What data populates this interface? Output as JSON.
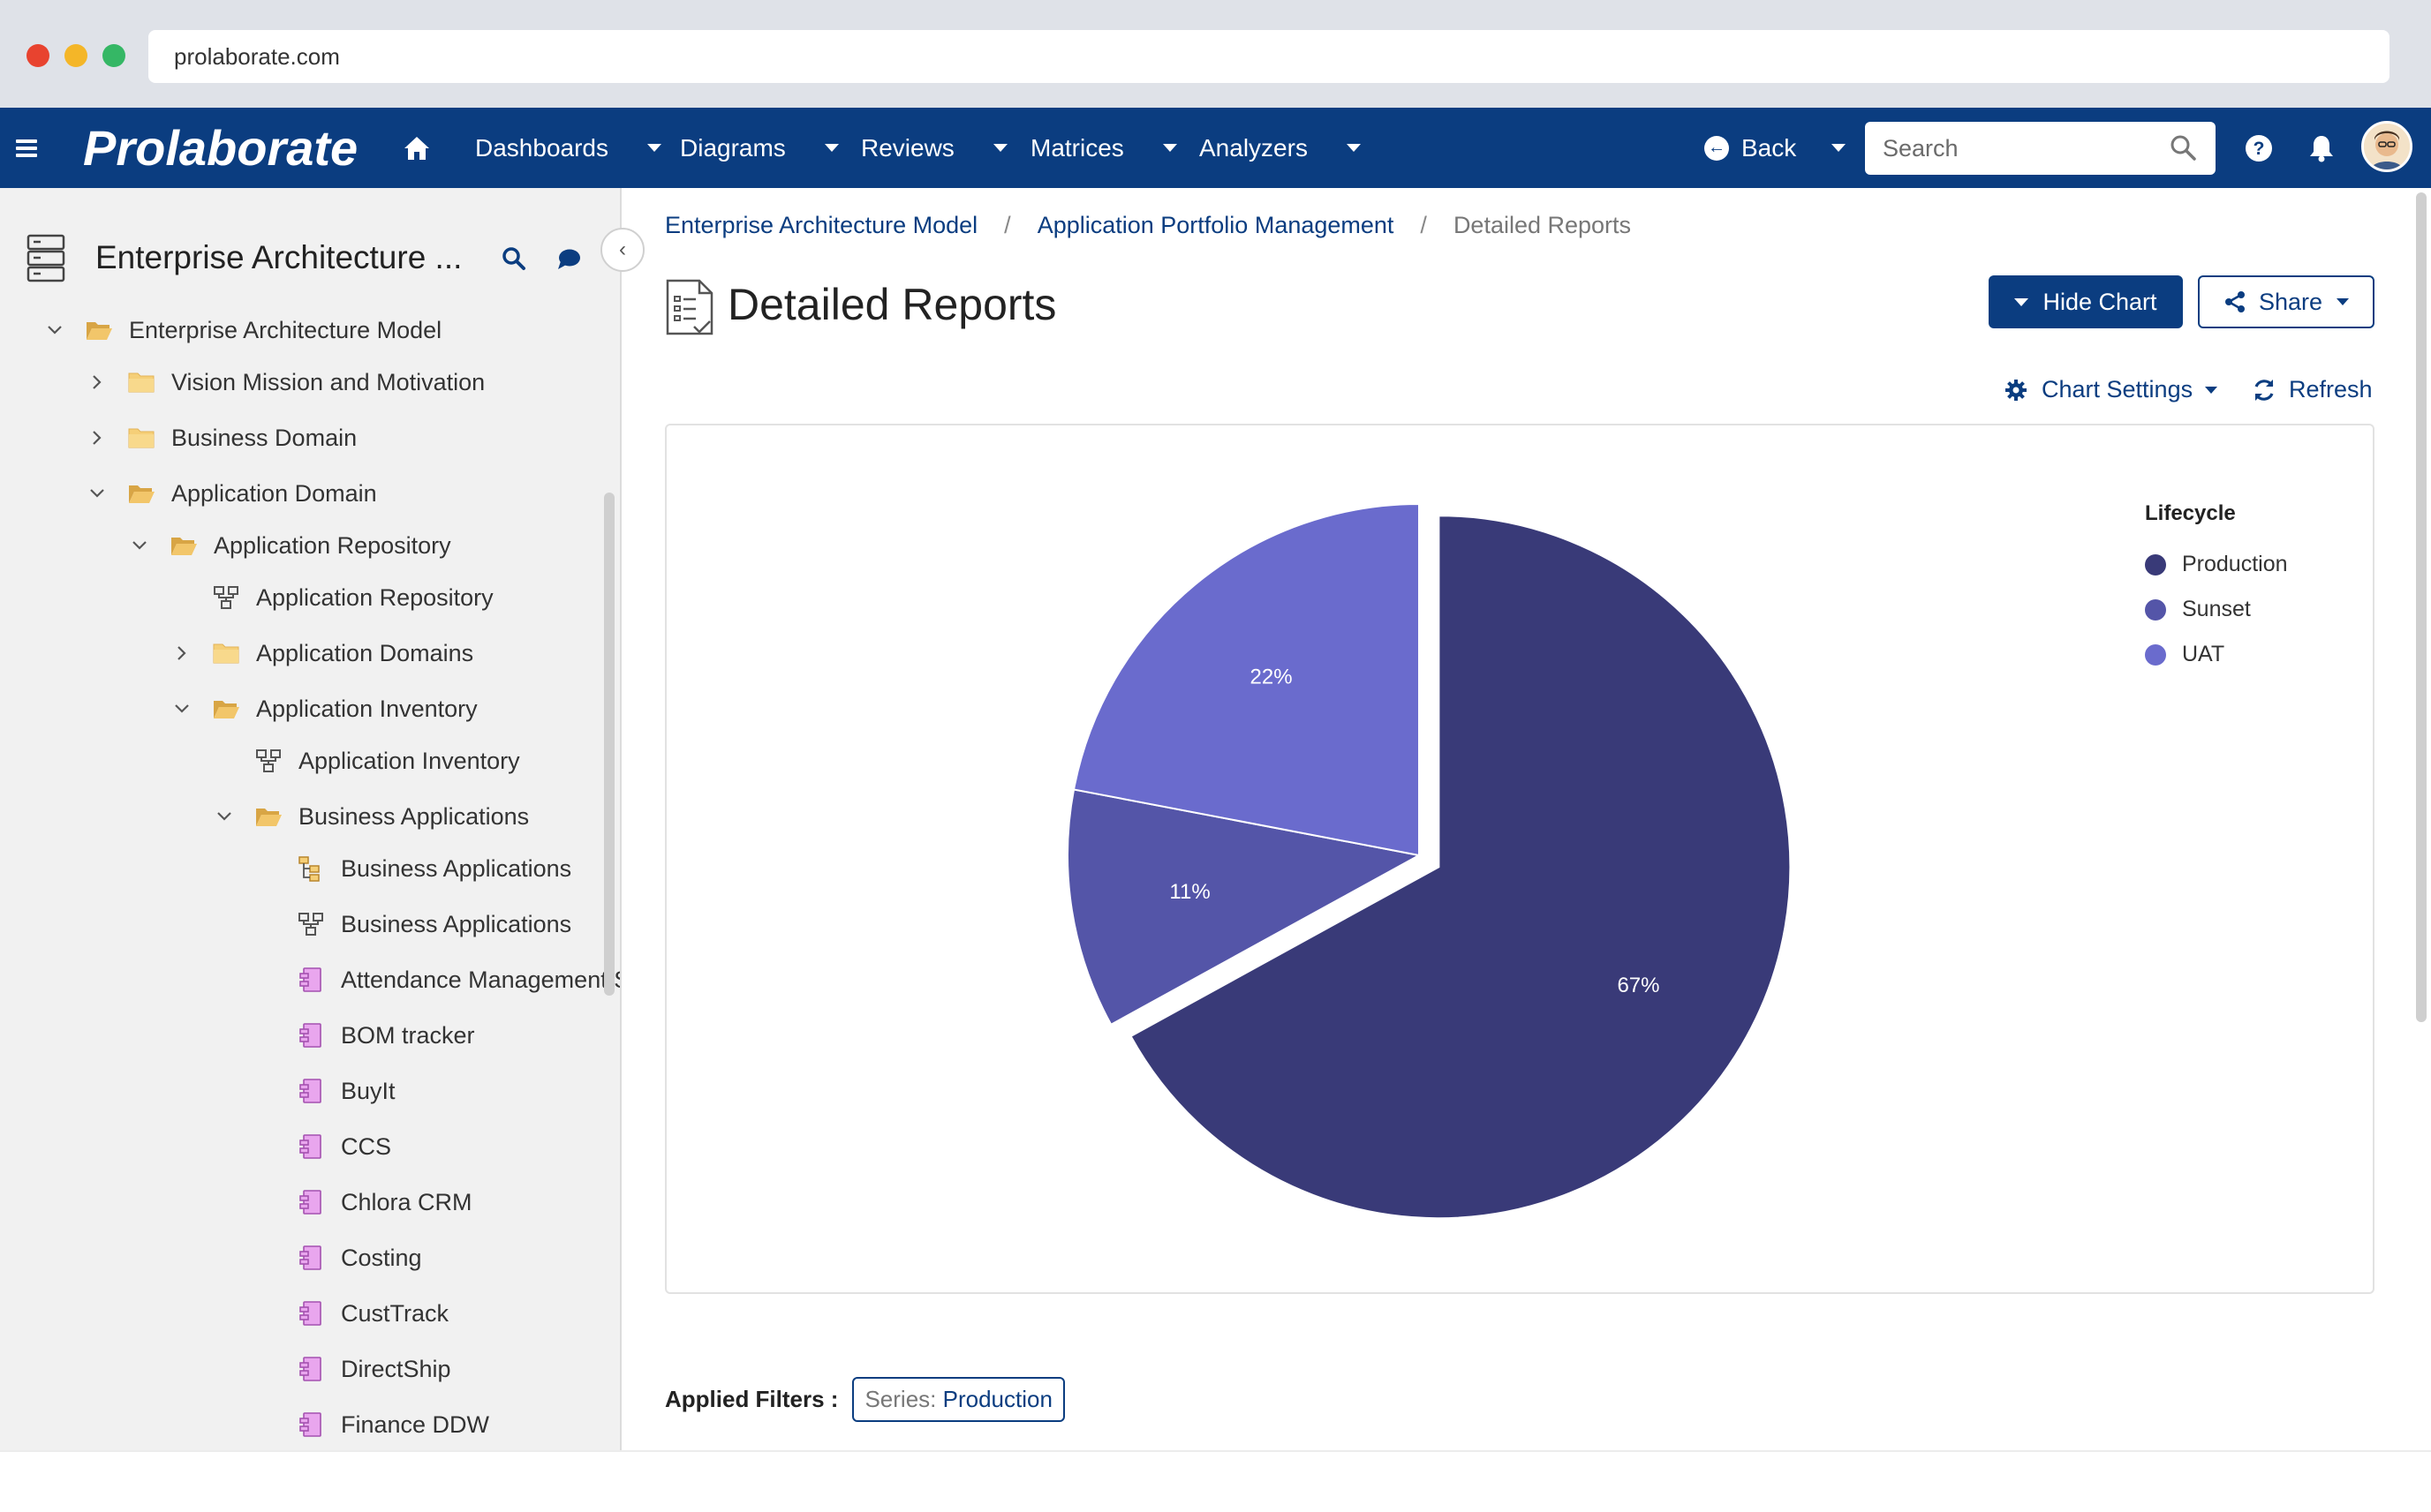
{
  "browser": {
    "url": "prolaborate.com"
  },
  "navbar": {
    "logo": "Prolaborate",
    "menus": [
      {
        "label": "Dashboards"
      },
      {
        "label": "Diagrams"
      },
      {
        "label": "Reviews"
      },
      {
        "label": "Matrices"
      },
      {
        "label": "Analyzers"
      }
    ],
    "back_label": "Back",
    "search_placeholder": "Search",
    "brand_color": "#0b3d80"
  },
  "sidebar": {
    "title": "Enterprise Architecture ...",
    "tree": [
      {
        "label": "Enterprise Architecture Model",
        "level": 0,
        "icon": "folder-open-icon",
        "expander": "expanded"
      },
      {
        "label": "Vision Mission and Motivation",
        "level": 1,
        "icon": "folder-icon",
        "expander": "collapsed"
      },
      {
        "label": "Business Domain",
        "level": 1,
        "icon": "folder-icon",
        "expander": "collapsed"
      },
      {
        "label": "Application Domain",
        "level": 1,
        "icon": "folder-open-icon",
        "expander": "expanded"
      },
      {
        "label": "Application Repository",
        "level": 2,
        "icon": "folder-open-icon",
        "expander": "expanded"
      },
      {
        "label": "Application Repository",
        "level": 3,
        "icon": "diagram-icon",
        "expander": "none"
      },
      {
        "label": "Application Domains",
        "level": 3,
        "icon": "folder-icon",
        "expander": "collapsed"
      },
      {
        "label": "Application Inventory",
        "level": 3,
        "icon": "folder-open-icon",
        "expander": "expanded"
      },
      {
        "label": "Application Inventory",
        "level": 4,
        "icon": "diagram-icon",
        "expander": "none"
      },
      {
        "label": "Business Applications",
        "level": 4,
        "icon": "folder-open-icon",
        "expander": "expanded"
      },
      {
        "label": "Business Applications",
        "level": 5,
        "icon": "hierarchy-diagram-icon",
        "expander": "none"
      },
      {
        "label": "Business Applications",
        "level": 5,
        "icon": "diagram-icon",
        "expander": "none"
      },
      {
        "label": "Attendance Management S",
        "level": 5,
        "icon": "component-icon",
        "expander": "none"
      },
      {
        "label": "BOM tracker",
        "level": 5,
        "icon": "component-icon",
        "expander": "none"
      },
      {
        "label": "BuyIt",
        "level": 5,
        "icon": "component-icon",
        "expander": "none"
      },
      {
        "label": "CCS",
        "level": 5,
        "icon": "component-icon",
        "expander": "none"
      },
      {
        "label": "Chlora CRM",
        "level": 5,
        "icon": "component-icon",
        "expander": "none"
      },
      {
        "label": "Costing",
        "level": 5,
        "icon": "component-icon",
        "expander": "none"
      },
      {
        "label": "CustTrack",
        "level": 5,
        "icon": "component-icon",
        "expander": "none"
      },
      {
        "label": "DirectShip",
        "level": 5,
        "icon": "component-icon",
        "expander": "none"
      },
      {
        "label": "Finance DDW",
        "level": 5,
        "icon": "component-icon",
        "expander": "none"
      }
    ]
  },
  "main": {
    "breadcrumb": [
      {
        "label": "Enterprise Architecture Model"
      },
      {
        "label": "Application Portfolio Management"
      },
      {
        "label": "Detailed Reports"
      }
    ],
    "breadcrumb_separator": "/",
    "title": "Detailed Reports",
    "hide_chart_label": "Hide Chart",
    "share_label": "Share",
    "chart_settings_label": "Chart Settings",
    "refresh_label": "Refresh",
    "filters_label": "Applied Filters :",
    "filter_key": "Series:",
    "filter_value": "Production"
  },
  "chart_data": {
    "type": "pie",
    "legend_title": "Lifecycle",
    "legend_position": "top-right",
    "slices": [
      {
        "name": "Production",
        "value": 67,
        "label": "67%",
        "color": "#393a78",
        "exploded": true
      },
      {
        "name": "Sunset",
        "value": 11,
        "label": "11%",
        "color": "#5455a8",
        "exploded": false
      },
      {
        "name": "UAT",
        "value": 22,
        "label": "22%",
        "color": "#6a6bcd",
        "exploded": false
      }
    ]
  }
}
